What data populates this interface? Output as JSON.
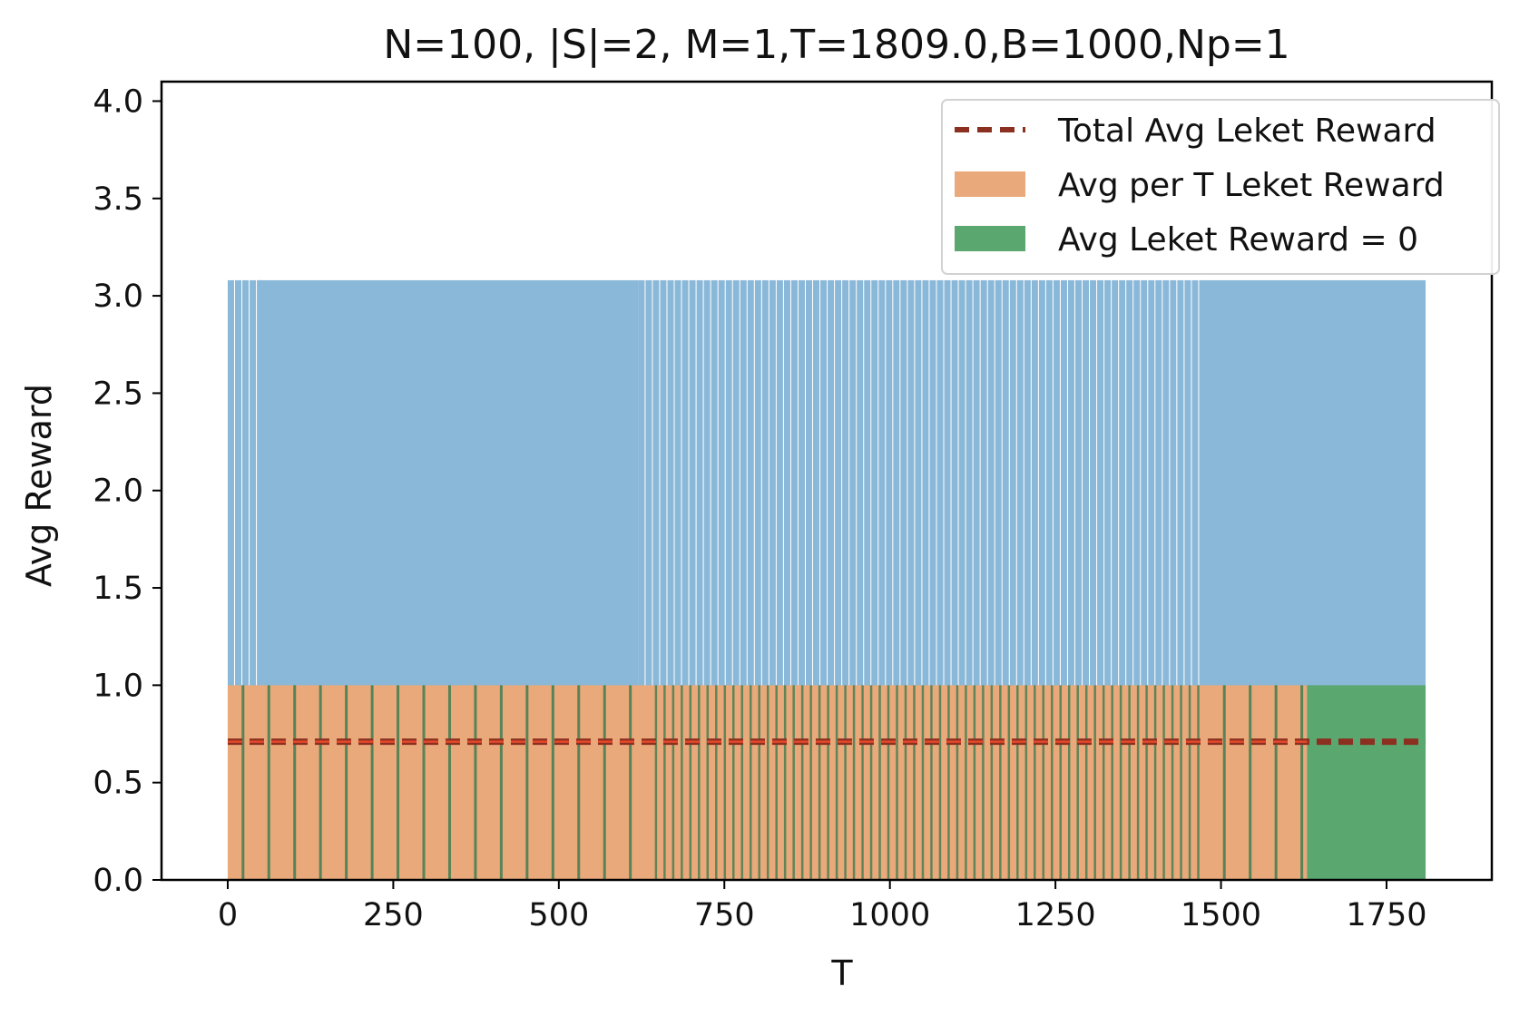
{
  "chart_data": {
    "type": "bar",
    "title": "N=100, |S|=2, M=1,T=1809.0,B=1000,Np=1",
    "xlabel": "T",
    "ylabel": "Avg Reward",
    "xlim": [
      -100,
      1909
    ],
    "ylim": [
      0,
      4.1
    ],
    "xticks": [
      0,
      250,
      500,
      750,
      1000,
      1250,
      1500,
      1750
    ],
    "xtick_labels": [
      "0",
      "250",
      "500",
      "750",
      "1000",
      "1250",
      "1500",
      "1750"
    ],
    "yticks": [
      0,
      0.5,
      1,
      1.5,
      2,
      2.5,
      3,
      3.5,
      4
    ],
    "ytick_labels": [
      "0.0",
      "0.5",
      "1.0",
      "1.5",
      "2.0",
      "2.5",
      "3.0",
      "3.5",
      "4.0"
    ],
    "grid": false,
    "legend_position": "top-right",
    "colors": {
      "blue": "#8ab8d9",
      "orange": "#e9a97a",
      "green": "#5aa76f",
      "dark_green": "#3e7c50",
      "dash": "#8b2f20",
      "dash_inner": "#e2482a"
    },
    "series": [
      {
        "name": "Total Avg Leket Reward",
        "kind": "hline",
        "value": 0.71
      },
      {
        "name": "Avg per T Leket Reward",
        "kind": "bars",
        "value": 1.0,
        "note_segments": [
          [
            0,
            1630
          ]
        ]
      },
      {
        "name": "Avg Leket Reward = 0",
        "kind": "bars",
        "value": 1.0,
        "note_segments": [
          [
            1630,
            1809
          ]
        ]
      },
      {
        "name": "",
        "kind": "bars",
        "value": 3.08,
        "blocks": [
          [
            45,
            620
          ],
          [
            1475,
            1809
          ]
        ],
        "comb": [
          [
            0,
            45
          ],
          [
            620,
            1475
          ]
        ]
      }
    ],
    "legend": [
      "Total Avg Leket Reward",
      "Avg per T Leket Reward",
      "Avg Leket Reward = 0"
    ]
  }
}
